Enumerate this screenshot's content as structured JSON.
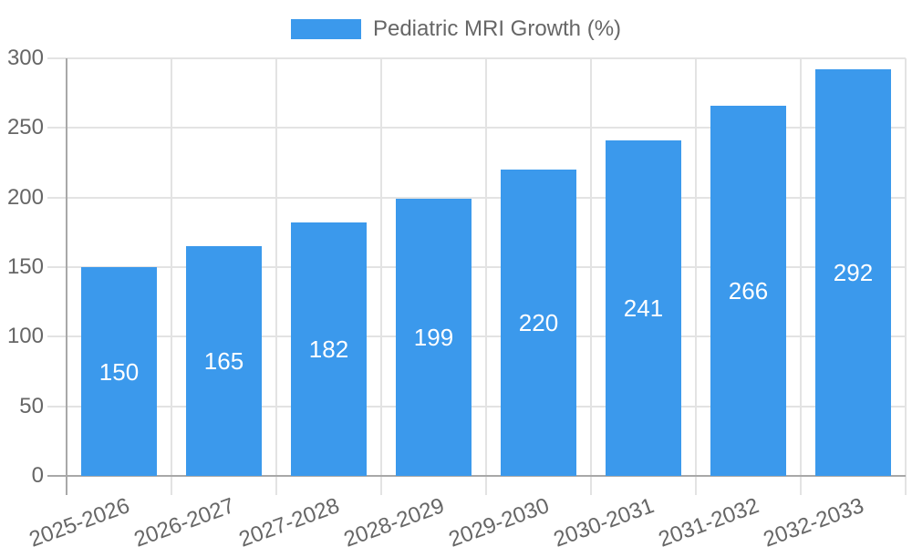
{
  "legend": {
    "label": "Pediatric MRI Growth (%)"
  },
  "chart_data": {
    "type": "bar",
    "categories": [
      "2025-2026",
      "2026-2027",
      "2027-2028",
      "2028-2029",
      "2029-2030",
      "2030-2031",
      "2031-2032",
      "2032-2033"
    ],
    "series": [
      {
        "name": "Pediatric MRI Growth (%)",
        "values": [
          150,
          165,
          182,
          199,
          220,
          241,
          266,
          292
        ]
      }
    ],
    "xlabel": "",
    "ylabel": "",
    "ylim": [
      0,
      300
    ],
    "yticks": [
      0,
      50,
      100,
      150,
      200,
      250,
      300
    ],
    "grid": true,
    "legend_position": "top-center",
    "value_labels_position": "inside-center",
    "x_label_rotation_deg": -20,
    "colors": {
      "bar": "#3B99EC",
      "value_label": "#FFFFFF",
      "axis_text": "#666666",
      "gridline": "#E3E3E3",
      "axis_line": "#A8A8A8"
    }
  }
}
